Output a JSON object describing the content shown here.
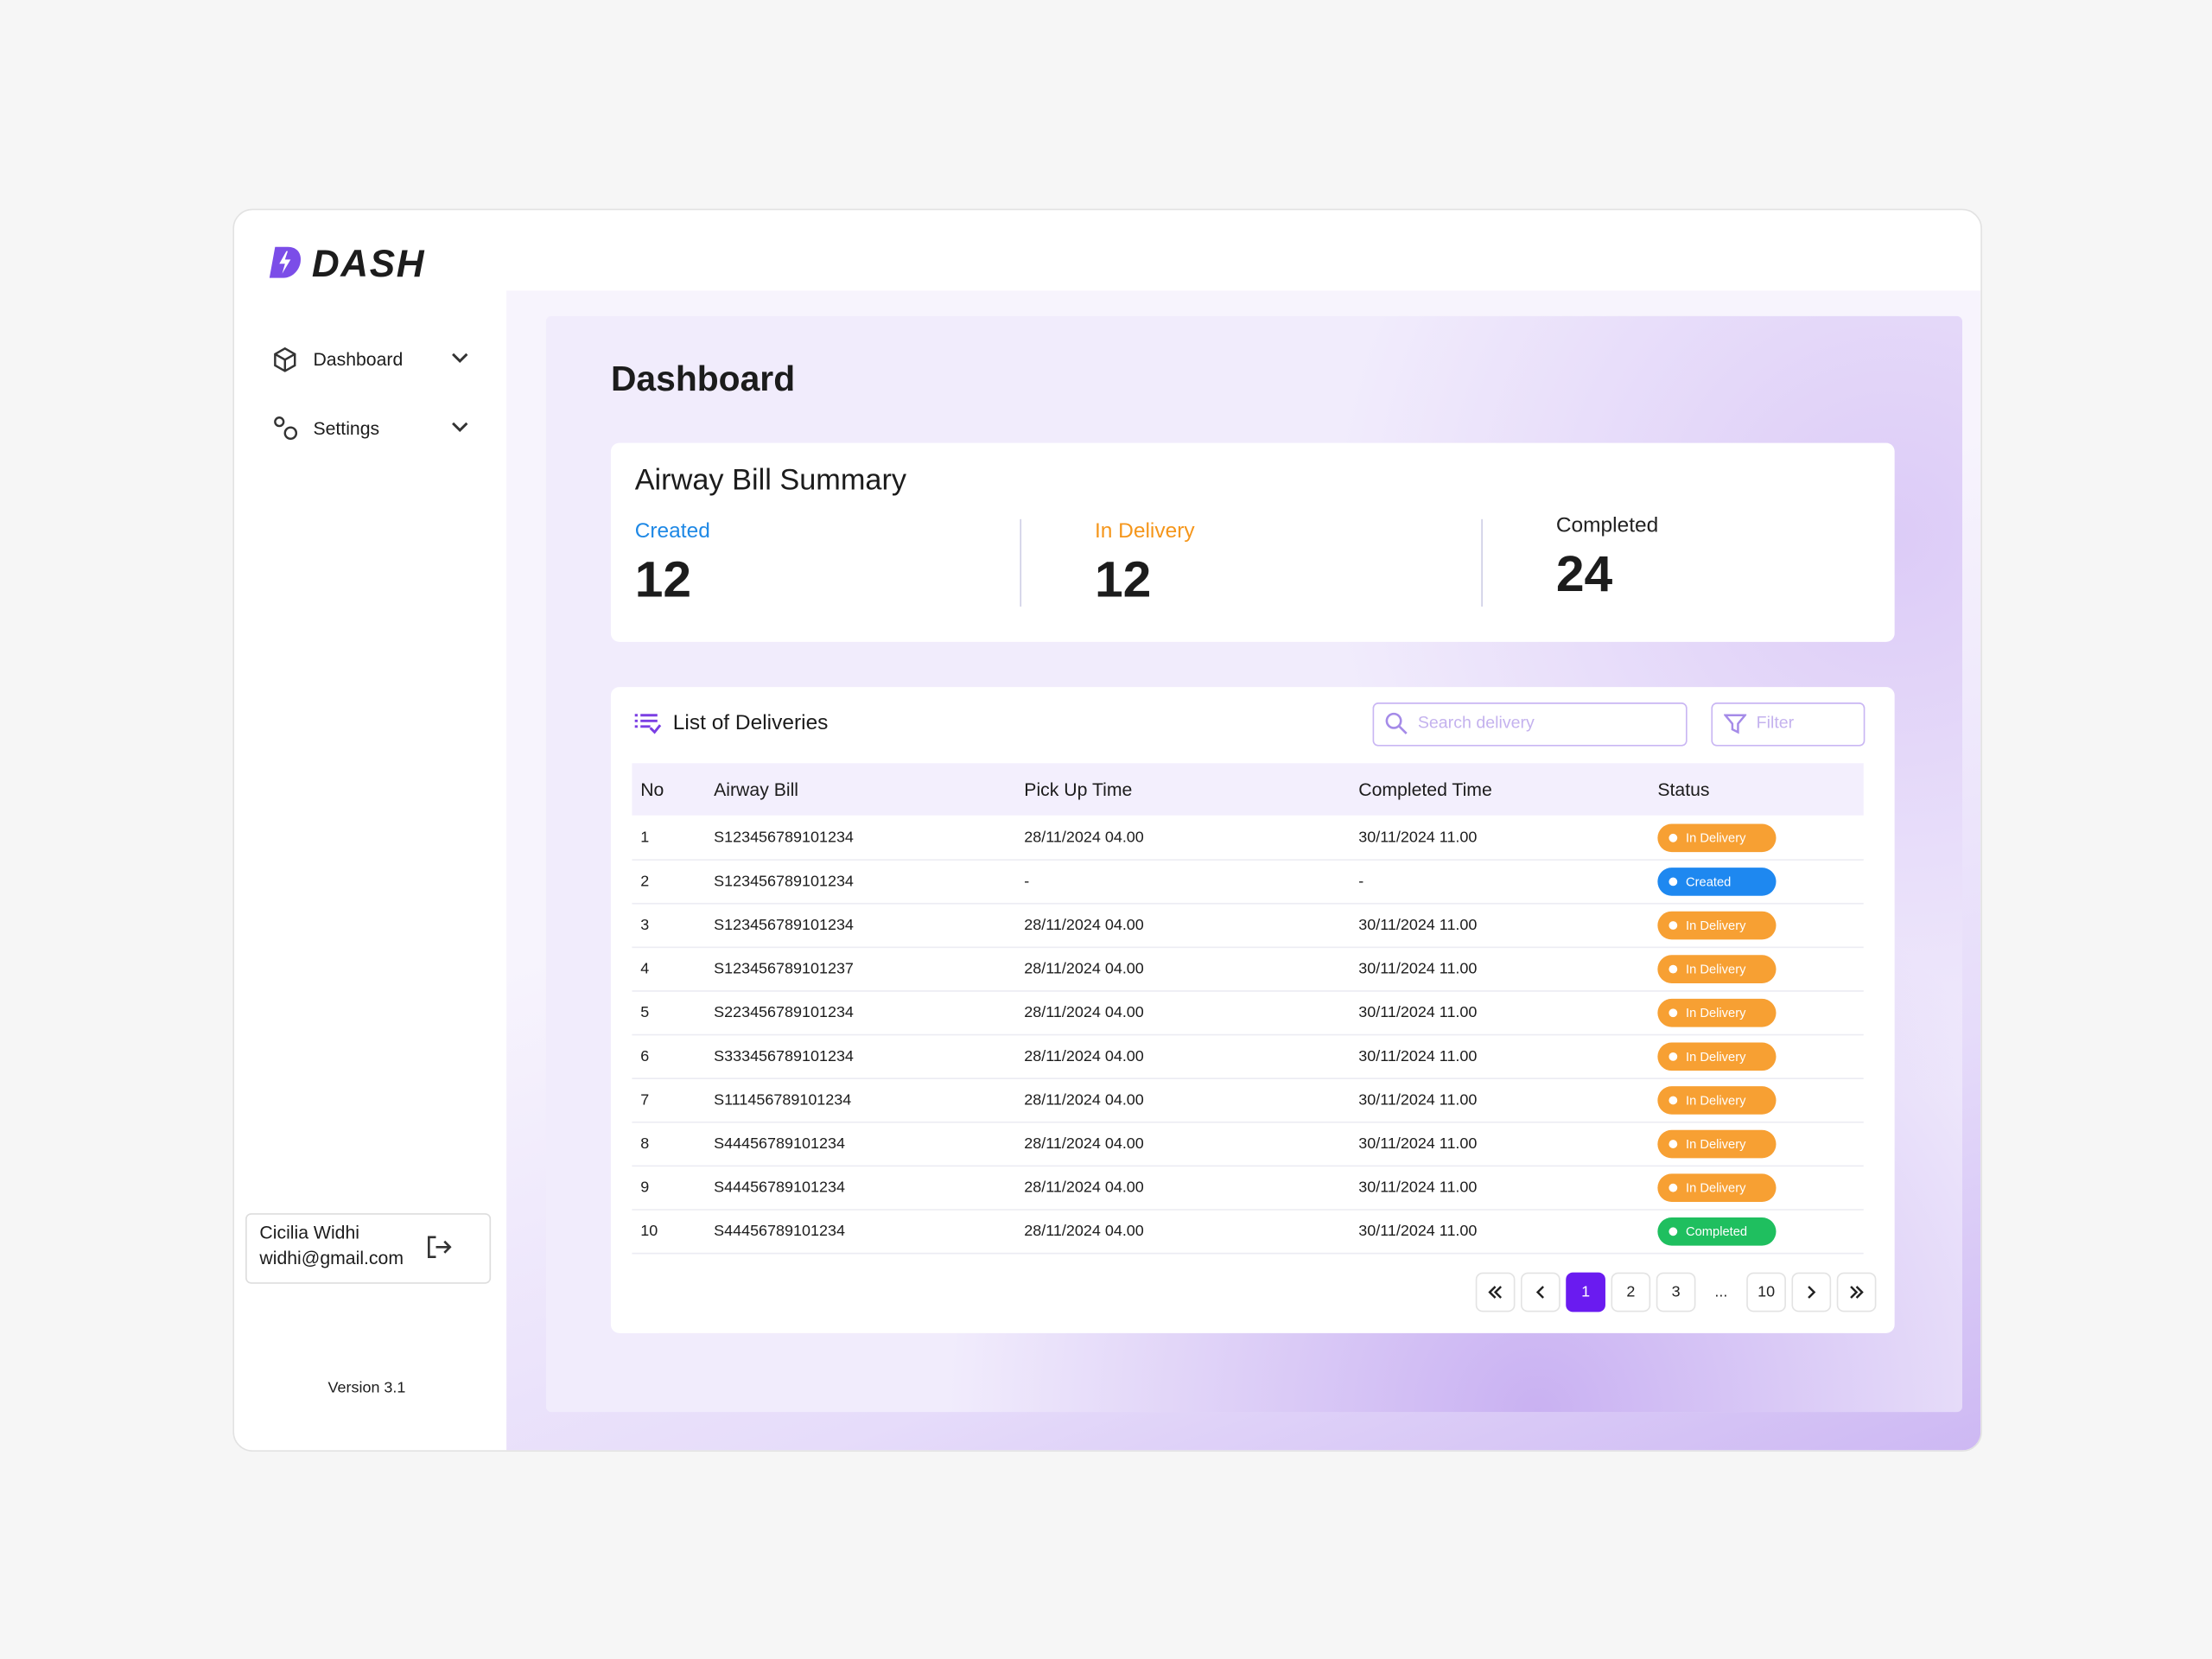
{
  "brand": "DASH",
  "nav": [
    {
      "label": "Dashboard"
    },
    {
      "label": "Settings"
    }
  ],
  "user": {
    "name": "Cicilia Widhi",
    "email": "widhi@gmail.com"
  },
  "version": "Version 3.1",
  "page_title": "Dashboard",
  "summary": {
    "title": "Airway Bill Summary",
    "items": [
      {
        "label": "Created",
        "value": 12,
        "color": "#1e88e5"
      },
      {
        "label": "In Delivery",
        "value": 12,
        "color": "#f5961b"
      },
      {
        "label": "Completed",
        "value": 24,
        "color": "#222222"
      }
    ]
  },
  "deliveries": {
    "title": "List of Deliveries",
    "search_placeholder": "Search delivery",
    "filter": "Filter",
    "columns": [
      "No",
      "Airway Bill",
      "Pick Up Time",
      "Completed Time",
      "Status"
    ],
    "rows": [
      [
        1,
        "S123456789101234",
        "28/11/2024 04.00",
        "30/11/2024 11.00",
        {
          "label": "In Delivery",
          "color": "#f7a033"
        }
      ],
      [
        2,
        "S123456789101234",
        "-",
        "-",
        {
          "label": "Created",
          "color": "#1e88f0"
        }
      ],
      [
        3,
        "S123456789101234",
        "28/11/2024 04.00",
        "30/11/2024 11.00",
        {
          "label": "In Delivery",
          "color": "#f7a033"
        }
      ],
      [
        4,
        "S123456789101237",
        "28/11/2024 04.00",
        "30/11/2024 11.00",
        {
          "label": "In Delivery",
          "color": "#f7a033"
        }
      ],
      [
        5,
        "S223456789101234",
        "28/11/2024 04.00",
        "30/11/2024 11.00",
        {
          "label": "In Delivery",
          "color": "#f7a033"
        }
      ],
      [
        6,
        "S333456789101234",
        "28/11/2024 04.00",
        "30/11/2024 11.00",
        {
          "label": "In Delivery",
          "color": "#f7a033"
        }
      ],
      [
        7,
        "S111456789101234",
        "28/11/2024 04.00",
        "30/11/2024 11.00",
        {
          "label": "In Delivery",
          "color": "#f7a033"
        }
      ],
      [
        8,
        "S44456789101234",
        "28/11/2024 04.00",
        "30/11/2024 11.00",
        {
          "label": "In Delivery",
          "color": "#f7a033"
        }
      ],
      [
        9,
        "S44456789101234",
        "28/11/2024 04.00",
        "30/11/2024 11.00",
        {
          "label": "In Delivery",
          "color": "#f7a033"
        }
      ],
      [
        10,
        "S44456789101234",
        "28/11/2024 04.00",
        "30/11/2024 11.00",
        {
          "label": "Completed",
          "color": "#1fbf5f"
        }
      ]
    ]
  },
  "pagination": {
    "pages": [
      1,
      2,
      3,
      "...",
      10
    ],
    "active_color": "#6a1bf0"
  }
}
